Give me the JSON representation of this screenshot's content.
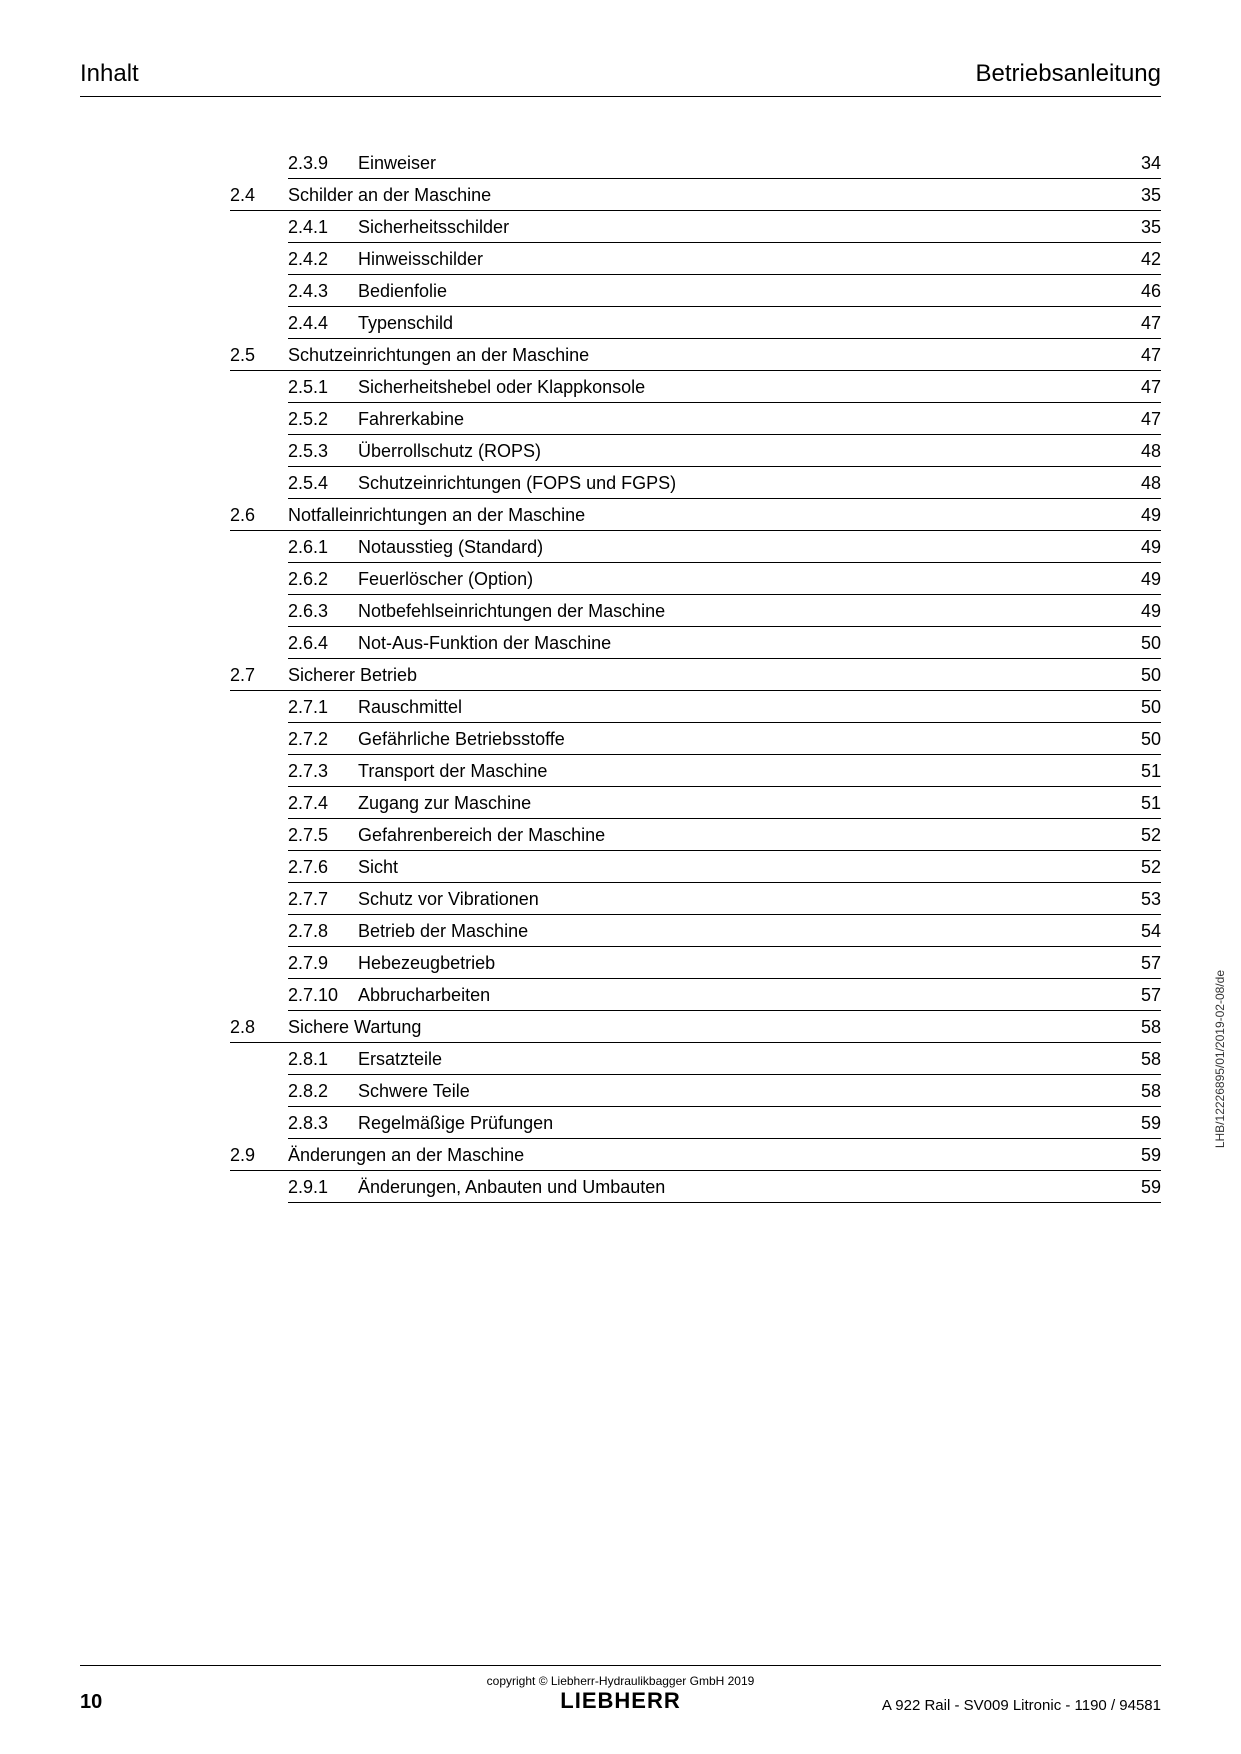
{
  "header": {
    "left": "Inhalt",
    "right": "Betriebsanleitung"
  },
  "toc": [
    {
      "level": "sub",
      "num": "2.3.9",
      "title": "Einweiser",
      "page": "34"
    },
    {
      "level": "section",
      "num": "2.4",
      "title": "Schilder an der Maschine",
      "page": "35"
    },
    {
      "level": "sub",
      "num": "2.4.1",
      "title": "Sicherheitsschilder",
      "page": "35"
    },
    {
      "level": "sub",
      "num": "2.4.2",
      "title": "Hinweisschilder",
      "page": "42"
    },
    {
      "level": "sub",
      "num": "2.4.3",
      "title": "Bedienfolie",
      "page": "46"
    },
    {
      "level": "sub",
      "num": "2.4.4",
      "title": "Typenschild",
      "page": "47"
    },
    {
      "level": "section",
      "num": "2.5",
      "title": "Schutzeinrichtungen an der Maschine",
      "page": "47"
    },
    {
      "level": "sub",
      "num": "2.5.1",
      "title": "Sicherheitshebel oder Klappkonsole",
      "page": "47"
    },
    {
      "level": "sub",
      "num": "2.5.2",
      "title": "Fahrerkabine",
      "page": "47"
    },
    {
      "level": "sub",
      "num": "2.5.3",
      "title": "Überrollschutz (ROPS)",
      "page": "48"
    },
    {
      "level": "sub",
      "num": "2.5.4",
      "title": "Schutzeinrichtungen (FOPS und FGPS)",
      "page": "48"
    },
    {
      "level": "section",
      "num": "2.6",
      "title": "Notfalleinrichtungen an der Maschine",
      "page": "49"
    },
    {
      "level": "sub",
      "num": "2.6.1",
      "title": "Notausstieg (Standard)",
      "page": "49"
    },
    {
      "level": "sub",
      "num": "2.6.2",
      "title": "Feuerlöscher (Option)",
      "page": "49"
    },
    {
      "level": "sub",
      "num": "2.6.3",
      "title": "Notbefehlseinrichtungen der Maschine",
      "page": "49"
    },
    {
      "level": "sub",
      "num": "2.6.4",
      "title": "Not-Aus-Funktion der Maschine",
      "page": "50"
    },
    {
      "level": "section",
      "num": "2.7",
      "title": "Sicherer Betrieb",
      "page": "50"
    },
    {
      "level": "sub",
      "num": "2.7.1",
      "title": "Rauschmittel",
      "page": "50"
    },
    {
      "level": "sub",
      "num": "2.7.2",
      "title": "Gefährliche Betriebsstoffe",
      "page": "50"
    },
    {
      "level": "sub",
      "num": "2.7.3",
      "title": "Transport der Maschine",
      "page": "51"
    },
    {
      "level": "sub",
      "num": "2.7.4",
      "title": "Zugang zur Maschine",
      "page": "51"
    },
    {
      "level": "sub",
      "num": "2.7.5",
      "title": "Gefahrenbereich der Maschine",
      "page": "52"
    },
    {
      "level": "sub",
      "num": "2.7.6",
      "title": "Sicht",
      "page": "52"
    },
    {
      "level": "sub",
      "num": "2.7.7",
      "title": "Schutz vor Vibrationen",
      "page": "53"
    },
    {
      "level": "sub",
      "num": "2.7.8",
      "title": "Betrieb der Maschine",
      "page": "54"
    },
    {
      "level": "sub",
      "num": "2.7.9",
      "title": "Hebezeugbetrieb",
      "page": "57"
    },
    {
      "level": "sub",
      "num": "2.7.10",
      "title": "Abbrucharbeiten",
      "page": "57"
    },
    {
      "level": "section",
      "num": "2.8",
      "title": "Sichere Wartung",
      "page": "58"
    },
    {
      "level": "sub",
      "num": "2.8.1",
      "title": "Ersatzteile",
      "page": "58"
    },
    {
      "level": "sub",
      "num": "2.8.2",
      "title": "Schwere Teile",
      "page": "58"
    },
    {
      "level": "sub",
      "num": "2.8.3",
      "title": "Regelmäßige Prüfungen",
      "page": "59"
    },
    {
      "level": "section",
      "num": "2.9",
      "title": "Änderungen an der Maschine",
      "page": "59"
    },
    {
      "level": "sub",
      "num": "2.9.1",
      "title": "Änderungen, Anbauten und Umbauten",
      "page": "59"
    }
  ],
  "sideText": "LHB/12226895/01/2019-02-08/de",
  "footer": {
    "copyright": "copyright © Liebherr-Hydraulikbagger GmbH 2019",
    "logo": "LIEBHERR",
    "pageNumber": "10",
    "right": "A 922 Rail - SV009 Litronic  - 1190 / 94581"
  }
}
